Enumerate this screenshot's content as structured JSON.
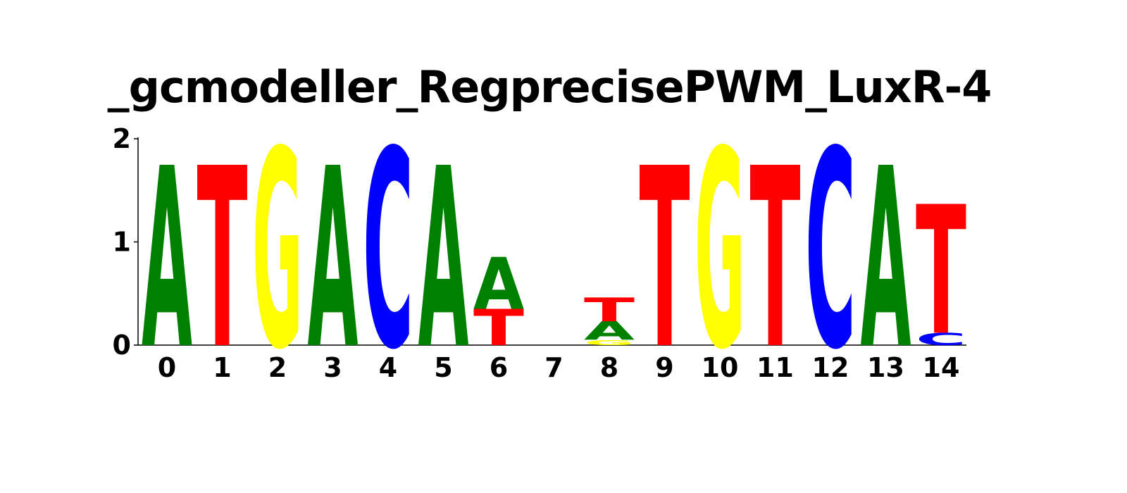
{
  "chart_data": {
    "type": "sequence-logo",
    "title": "_gcmodeller_RegprecisePWM_LuxR-4",
    "ylim": [
      0,
      2
    ],
    "y_ticks": [
      "0",
      "1",
      "2"
    ],
    "positions": [
      "0",
      "1",
      "2",
      "3",
      "4",
      "5",
      "6",
      "7",
      "8",
      "9",
      "10",
      "11",
      "12",
      "13",
      "14"
    ],
    "colors": {
      "A": "#008000",
      "C": "#0000ff",
      "G": "#ffff00",
      "T": "#ff0000"
    },
    "stacks": [
      [
        {
          "base": "A",
          "height": 1.75
        }
      ],
      [
        {
          "base": "T",
          "height": 1.75
        }
      ],
      [
        {
          "base": "G",
          "height": 1.92
        }
      ],
      [
        {
          "base": "A",
          "height": 1.75
        }
      ],
      [
        {
          "base": "C",
          "height": 1.92
        }
      ],
      [
        {
          "base": "A",
          "height": 1.75
        }
      ],
      [
        {
          "base": "T",
          "height": 0.35
        },
        {
          "base": "A",
          "height": 0.5
        }
      ],
      [],
      [
        {
          "base": "G",
          "height": 0.05
        },
        {
          "base": "A",
          "height": 0.18
        },
        {
          "base": "T",
          "height": 0.23
        }
      ],
      [
        {
          "base": "T",
          "height": 1.75
        }
      ],
      [
        {
          "base": "G",
          "height": 1.92
        }
      ],
      [
        {
          "base": "T",
          "height": 1.75
        }
      ],
      [
        {
          "base": "C",
          "height": 1.92
        }
      ],
      [
        {
          "base": "A",
          "height": 1.75
        }
      ],
      [
        {
          "base": "C",
          "height": 0.12
        },
        {
          "base": "T",
          "height": 1.25
        }
      ]
    ]
  }
}
